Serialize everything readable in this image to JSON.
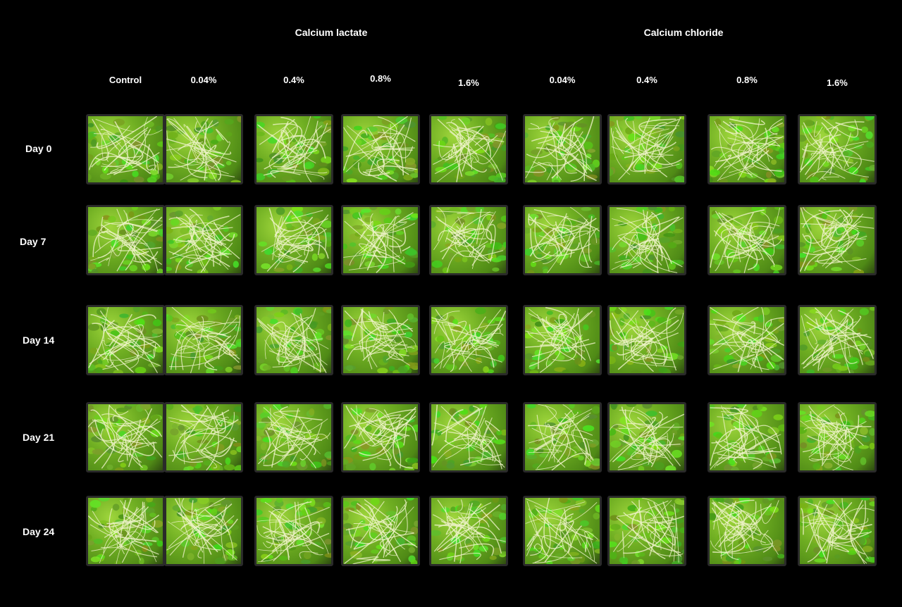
{
  "groups": [
    "Calcium lactate",
    "Calcium chloride"
  ],
  "columns": [
    "Control",
    "0.04%",
    "0.4%",
    "0.8%",
    "1.6%",
    "0.04%",
    "0.4%",
    "0.8%",
    "1.6%"
  ],
  "rows": [
    "Day 0",
    "Day 7",
    "Day 14",
    "Day 21",
    "Day 24"
  ],
  "colors": {
    "background": "#000000",
    "sprout_green": "#7fbf2a",
    "stem": "#e8f0c0"
  }
}
